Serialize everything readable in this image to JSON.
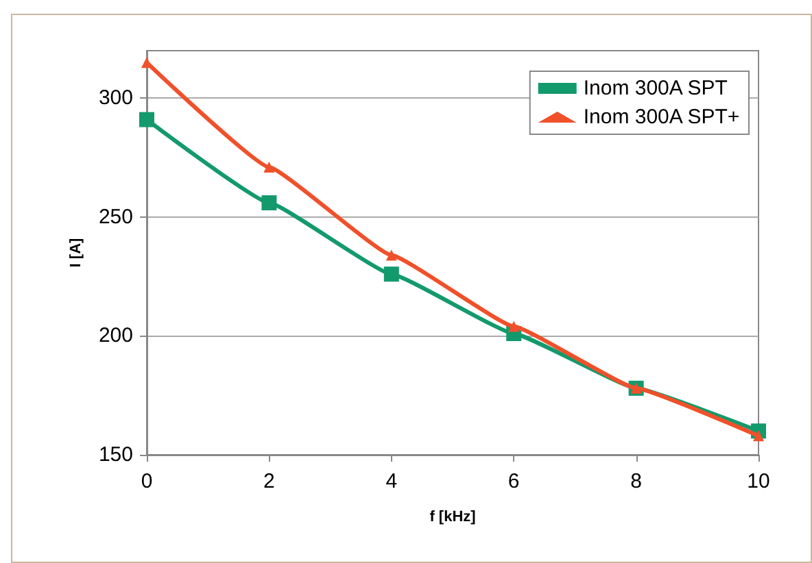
{
  "chart_data": {
    "type": "line",
    "xlabel": "f [kHz]",
    "ylabel": "I [A]",
    "x": [
      0,
      2,
      4,
      6,
      8,
      10
    ],
    "series": [
      {
        "name": "Inom 300A SPT",
        "color": "#139a6c",
        "marker": "square",
        "values": [
          291,
          256,
          226,
          201,
          178,
          160
        ]
      },
      {
        "name": "Inom 300A SPT+",
        "color": "#f0502a",
        "marker": "triangle",
        "values": [
          315,
          271,
          234,
          204,
          178,
          158
        ]
      }
    ],
    "xlim": [
      0,
      10
    ],
    "xticks": [
      0,
      2,
      4,
      6,
      8,
      10
    ],
    "ylim": [
      150,
      320
    ],
    "yticks": [
      150,
      200,
      250,
      300
    ],
    "grid": "y",
    "legend": "top right",
    "line_style": "solid"
  }
}
